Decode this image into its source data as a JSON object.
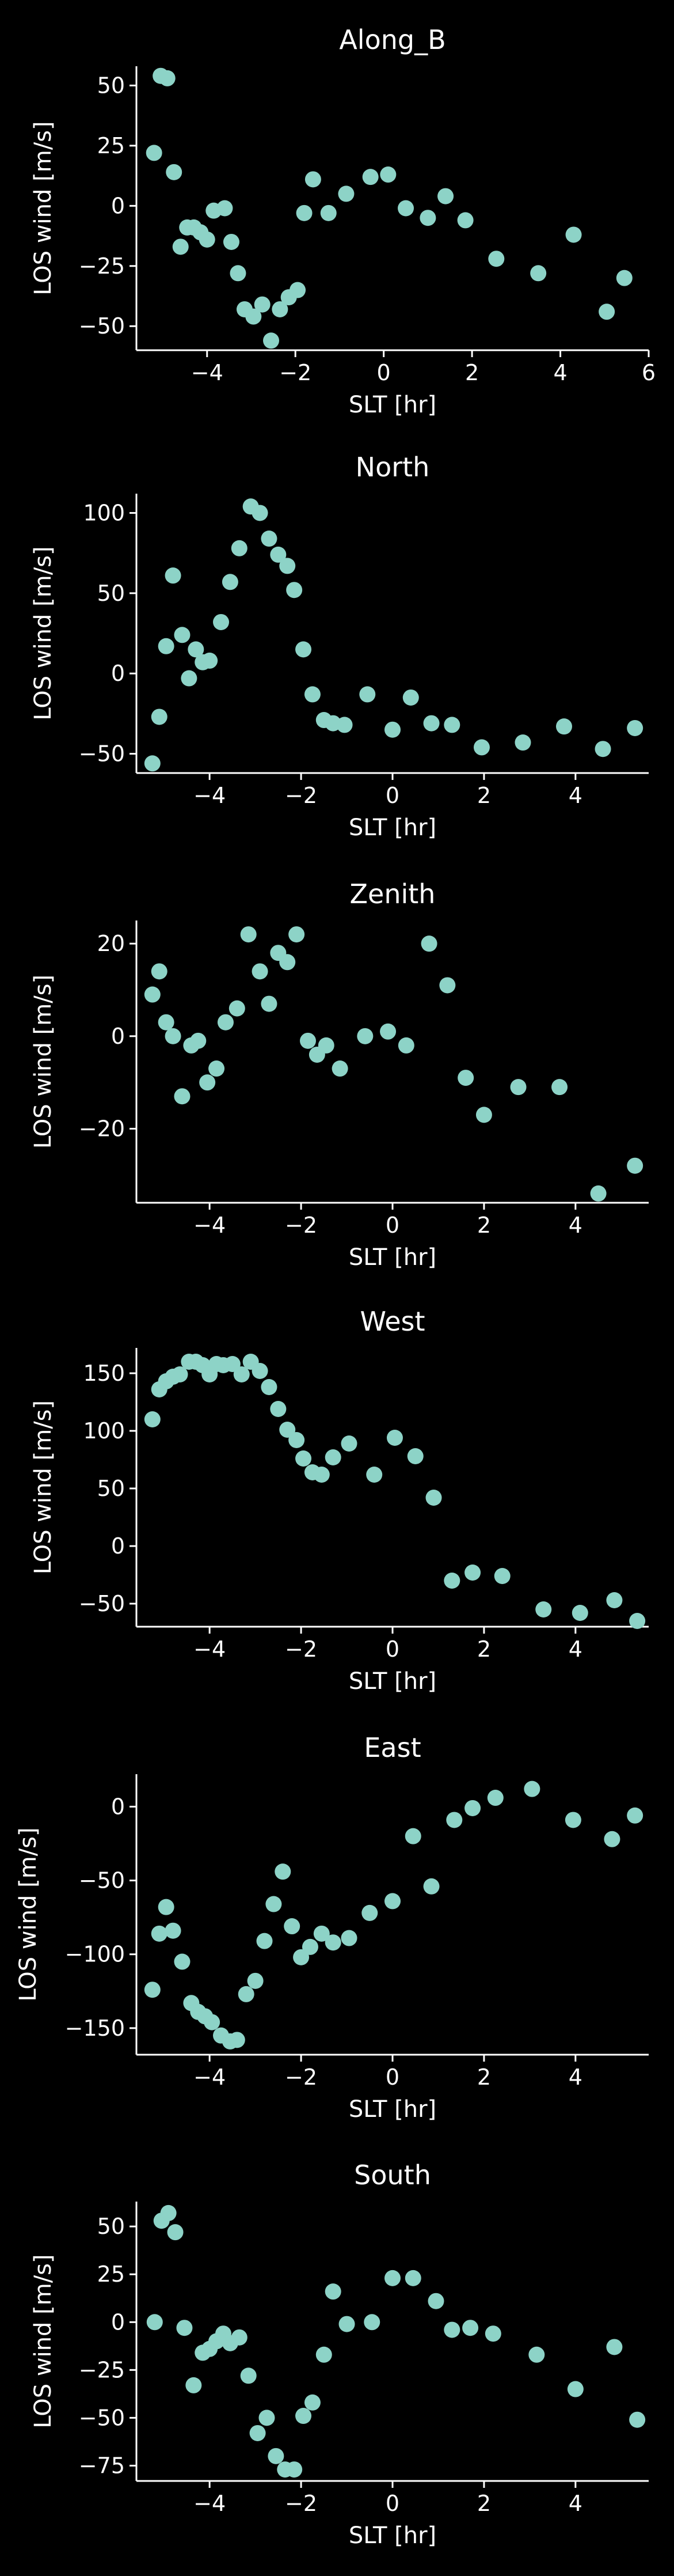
{
  "chart_data": [
    {
      "type": "scatter",
      "title": "Along_B",
      "xlabel": "SLT [hr]",
      "ylabel": "LOS wind [m/s]",
      "xlim": [
        -5.6,
        6
      ],
      "ylim": [
        -60,
        58
      ],
      "xticks": [
        -4,
        -2,
        0,
        2,
        4,
        6
      ],
      "yticks": [
        -50,
        -25,
        0,
        25,
        50
      ],
      "grid": false,
      "color": "#8dd3c7",
      "x": [
        -5.2,
        -5.05,
        -4.9,
        -4.75,
        -4.6,
        -4.45,
        -4.3,
        -4.15,
        -4.0,
        -3.85,
        -3.6,
        -3.45,
        -3.3,
        -3.15,
        -2.95,
        -2.75,
        -2.55,
        -2.35,
        -2.15,
        -1.95,
        -1.8,
        -1.6,
        -1.25,
        -0.85,
        -0.3,
        0.1,
        0.5,
        1.0,
        1.4,
        1.85,
        2.55,
        3.5,
        4.3,
        5.05,
        5.45
      ],
      "y": [
        22,
        54,
        53,
        14,
        -17,
        -9,
        -9,
        -11,
        -14,
        -2,
        -1,
        -15,
        -28,
        -43,
        -46,
        -41,
        -56,
        -43,
        -38,
        -35,
        -3,
        11,
        -3,
        5,
        12,
        13,
        -1,
        -5,
        4,
        -6,
        -22,
        -28,
        -12,
        -44,
        -30
      ]
    },
    {
      "type": "scatter",
      "title": "North",
      "xlabel": "SLT [hr]",
      "ylabel": "LOS wind [m/s]",
      "xlim": [
        -5.6,
        5.6
      ],
      "ylim": [
        -62,
        112
      ],
      "xticks": [
        -4,
        -2,
        0,
        2,
        4
      ],
      "yticks": [
        -50,
        0,
        50,
        100
      ],
      "grid": false,
      "color": "#8dd3c7",
      "x": [
        -5.25,
        -5.1,
        -4.95,
        -4.8,
        -4.6,
        -4.45,
        -4.3,
        -4.15,
        -4.0,
        -3.75,
        -3.55,
        -3.35,
        -3.1,
        -2.9,
        -2.7,
        -2.5,
        -2.3,
        -2.15,
        -1.95,
        -1.75,
        -1.5,
        -1.3,
        -1.05,
        -0.55,
        0.0,
        0.4,
        0.85,
        1.3,
        1.95,
        2.85,
        3.75,
        4.6,
        5.3
      ],
      "y": [
        -56,
        -27,
        17,
        61,
        24,
        -3,
        15,
        7,
        8,
        32,
        57,
        78,
        104,
        100,
        84,
        74,
        67,
        52,
        15,
        -13,
        -29,
        -31,
        -32,
        -13,
        -35,
        -15,
        -31,
        -32,
        -46,
        -43,
        -33,
        -47,
        -34
      ]
    },
    {
      "type": "scatter",
      "title": "Zenith",
      "xlabel": "SLT [hr]",
      "ylabel": "LOS wind [m/s]",
      "xlim": [
        -5.6,
        5.6
      ],
      "ylim": [
        -36,
        25
      ],
      "xticks": [
        -4,
        -2,
        0,
        2,
        4
      ],
      "yticks": [
        -20,
        0,
        20
      ],
      "grid": false,
      "color": "#8dd3c7",
      "x": [
        -5.25,
        -5.1,
        -4.95,
        -4.8,
        -4.6,
        -4.4,
        -4.25,
        -4.05,
        -3.85,
        -3.65,
        -3.4,
        -3.15,
        -2.9,
        -2.7,
        -2.5,
        -2.3,
        -2.1,
        -1.85,
        -1.65,
        -1.45,
        -1.15,
        -0.6,
        -0.1,
        0.3,
        0.8,
        1.2,
        1.6,
        2.0,
        2.75,
        3.65,
        4.5,
        5.3
      ],
      "y": [
        9,
        14,
        3,
        0,
        -13,
        -2,
        -1,
        -10,
        -7,
        3,
        6,
        22,
        14,
        7,
        18,
        16,
        22,
        -1,
        -4,
        -2,
        -7,
        0,
        1,
        -2,
        20,
        11,
        -9,
        -17,
        -11,
        -11,
        -34,
        -28
      ]
    },
    {
      "type": "scatter",
      "title": "West",
      "xlabel": "SLT [hr]",
      "ylabel": "LOS wind [m/s]",
      "xlim": [
        -5.6,
        5.6
      ],
      "ylim": [
        -70,
        172
      ],
      "xticks": [
        -4,
        -2,
        0,
        2,
        4
      ],
      "yticks": [
        -50,
        0,
        50,
        100,
        150
      ],
      "grid": false,
      "color": "#8dd3c7",
      "x": [
        -5.25,
        -5.1,
        -4.95,
        -4.8,
        -4.65,
        -4.45,
        -4.3,
        -4.15,
        -4.0,
        -3.85,
        -3.7,
        -3.5,
        -3.3,
        -3.1,
        -2.9,
        -2.7,
        -2.5,
        -2.3,
        -2.1,
        -1.95,
        -1.75,
        -1.55,
        -1.3,
        -0.95,
        -0.4,
        0.05,
        0.5,
        0.9,
        1.3,
        1.75,
        2.4,
        3.3,
        4.1,
        4.85,
        5.35
      ],
      "y": [
        110,
        136,
        143,
        147,
        149,
        160,
        160,
        157,
        149,
        158,
        157,
        158,
        149,
        160,
        152,
        138,
        119,
        101,
        92,
        76,
        64,
        62,
        77,
        89,
        62,
        94,
        78,
        42,
        -30,
        -23,
        -26,
        -55,
        -58,
        -47,
        -65
      ]
    },
    {
      "type": "scatter",
      "title": "East",
      "xlabel": "SLT [hr]",
      "ylabel": "LOS wind [m/s]",
      "xlim": [
        -5.6,
        5.6
      ],
      "ylim": [
        -168,
        22
      ],
      "xticks": [
        -4,
        -2,
        0,
        2,
        4
      ],
      "yticks": [
        -150,
        -100,
        -50,
        0
      ],
      "grid": false,
      "color": "#8dd3c7",
      "x": [
        -5.25,
        -5.1,
        -4.95,
        -4.8,
        -4.6,
        -4.4,
        -4.25,
        -4.1,
        -3.95,
        -3.75,
        -3.55,
        -3.4,
        -3.2,
        -3.0,
        -2.8,
        -2.6,
        -2.4,
        -2.2,
        -2.0,
        -1.8,
        -1.55,
        -1.3,
        -0.95,
        -0.5,
        0.0,
        0.45,
        0.85,
        1.35,
        1.75,
        2.25,
        3.05,
        3.95,
        4.8,
        5.3
      ],
      "y": [
        -124,
        -86,
        -68,
        -84,
        -105,
        -133,
        -139,
        -142,
        -146,
        -155,
        -159,
        -158,
        -127,
        -118,
        -91,
        -66,
        -44,
        -81,
        -102,
        -95,
        -86,
        -92,
        -89,
        -72,
        -64,
        -20,
        -54,
        -9,
        -1,
        6,
        12,
        -9,
        -22,
        -6
      ]
    },
    {
      "type": "scatter",
      "title": "South",
      "xlabel": "SLT [hr]",
      "ylabel": "LOS wind [m/s]",
      "xlim": [
        -5.6,
        5.6
      ],
      "ylim": [
        -83,
        63
      ],
      "xticks": [
        -4,
        -2,
        0,
        2,
        4
      ],
      "yticks": [
        -75,
        -50,
        -25,
        0,
        25,
        50
      ],
      "grid": false,
      "color": "#8dd3c7",
      "x": [
        -5.2,
        -5.05,
        -4.9,
        -4.75,
        -4.55,
        -4.35,
        -4.15,
        -4.0,
        -3.85,
        -3.7,
        -3.55,
        -3.35,
        -3.15,
        -2.95,
        -2.75,
        -2.55,
        -2.35,
        -2.15,
        -1.95,
        -1.75,
        -1.5,
        -1.3,
        -1.0,
        -0.45,
        0.0,
        0.45,
        0.95,
        1.3,
        1.7,
        2.2,
        3.15,
        4.0,
        4.85,
        5.35
      ],
      "y": [
        0,
        53,
        57,
        47,
        -3,
        -33,
        -16,
        -14,
        -10,
        -6,
        -11,
        -8,
        -28,
        -58,
        -50,
        -70,
        -77,
        -77,
        -49,
        -42,
        -17,
        16,
        -1,
        0,
        23,
        23,
        11,
        -4,
        -3,
        -6,
        -17,
        -35,
        -13,
        -51
      ]
    }
  ]
}
